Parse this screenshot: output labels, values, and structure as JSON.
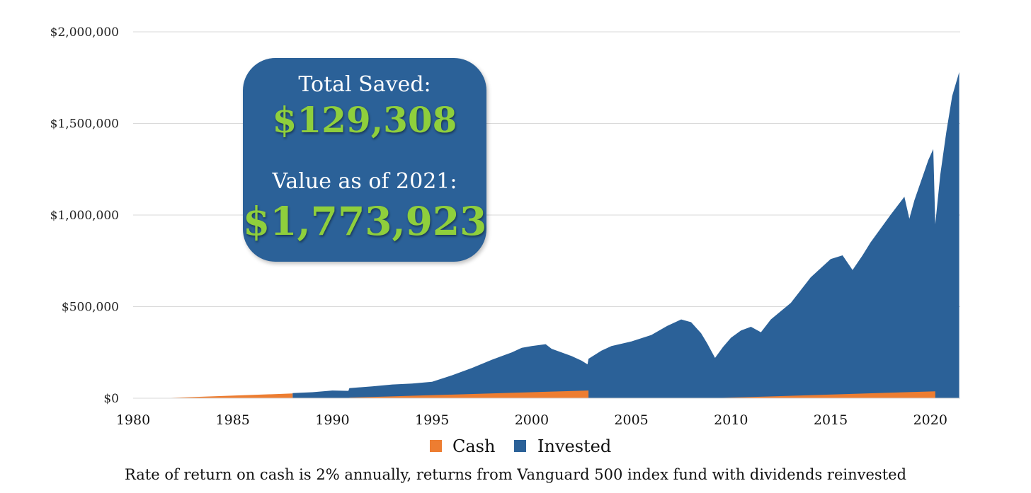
{
  "chart_data": {
    "type": "area",
    "xlim": [
      1980,
      2021.5
    ],
    "ylim": [
      0,
      2000000
    ],
    "y_ticks": [
      {
        "value": 0,
        "label": "$0"
      },
      {
        "value": 500000,
        "label": "$500,000"
      },
      {
        "value": 1000000,
        "label": "$1,000,000"
      },
      {
        "value": 1500000,
        "label": "$1,500,000"
      },
      {
        "value": 2000000,
        "label": "$2,000,000"
      }
    ],
    "x_ticks": [
      {
        "value": 1980,
        "label": "1980"
      },
      {
        "value": 1985,
        "label": "1985"
      },
      {
        "value": 1990,
        "label": "1990"
      },
      {
        "value": 1995,
        "label": "1995"
      },
      {
        "value": 2000,
        "label": "2000"
      },
      {
        "value": 2005,
        "label": "2005"
      },
      {
        "value": 2010,
        "label": "2010"
      },
      {
        "value": 2015,
        "label": "2015"
      },
      {
        "value": 2020,
        "label": "2020"
      }
    ],
    "grid": true,
    "legend_position": "bottom-center",
    "series": [
      {
        "name": "Invested",
        "color": "#2b6198",
        "points": [
          [
            1988.0,
            0
          ],
          [
            1988.0,
            28000
          ],
          [
            1989.0,
            33000
          ],
          [
            1990.0,
            42000
          ],
          [
            1990.8,
            40000
          ],
          [
            1990.85,
            55000
          ],
          [
            1992.0,
            65000
          ],
          [
            1993.0,
            75000
          ],
          [
            1994.0,
            80000
          ],
          [
            1995.0,
            90000
          ],
          [
            1996.0,
            125000
          ],
          [
            1997.0,
            165000
          ],
          [
            1998.0,
            210000
          ],
          [
            1998.5,
            230000
          ],
          [
            1999.0,
            250000
          ],
          [
            1999.5,
            275000
          ],
          [
            2000.0,
            285000
          ],
          [
            2000.7,
            295000
          ],
          [
            2001.0,
            270000
          ],
          [
            2001.5,
            250000
          ],
          [
            2002.0,
            230000
          ],
          [
            2002.5,
            205000
          ],
          [
            2002.8,
            185000
          ],
          [
            2002.85,
            215000
          ],
          [
            2003.5,
            260000
          ],
          [
            2004.0,
            285000
          ],
          [
            2005.0,
            310000
          ],
          [
            2006.0,
            345000
          ],
          [
            2006.8,
            395000
          ],
          [
            2007.5,
            430000
          ],
          [
            2008.0,
            415000
          ],
          [
            2008.5,
            355000
          ],
          [
            2008.8,
            300000
          ],
          [
            2009.2,
            220000
          ],
          [
            2009.6,
            280000
          ],
          [
            2010.0,
            330000
          ],
          [
            2010.5,
            370000
          ],
          [
            2011.0,
            390000
          ],
          [
            2011.5,
            360000
          ],
          [
            2012.0,
            430000
          ],
          [
            2013.0,
            520000
          ],
          [
            2014.0,
            660000
          ],
          [
            2015.0,
            760000
          ],
          [
            2015.6,
            780000
          ],
          [
            2016.1,
            700000
          ],
          [
            2016.6,
            780000
          ],
          [
            2017.0,
            850000
          ],
          [
            2018.0,
            1000000
          ],
          [
            2018.7,
            1100000
          ],
          [
            2018.95,
            980000
          ],
          [
            2019.2,
            1080000
          ],
          [
            2019.9,
            1300000
          ],
          [
            2020.15,
            1360000
          ],
          [
            2020.25,
            950000
          ],
          [
            2020.5,
            1220000
          ],
          [
            2020.8,
            1450000
          ],
          [
            2021.1,
            1650000
          ],
          [
            2021.45,
            1780000
          ],
          [
            2021.45,
            0
          ]
        ]
      },
      {
        "name": "Cash",
        "color": "#ed7d31",
        "points": [
          [
            1981.4,
            0
          ],
          [
            1988.0,
            26000
          ],
          [
            1988.0,
            0
          ],
          [
            1990.85,
            0
          ],
          [
            1990.85,
            3000
          ],
          [
            2002.85,
            42000
          ],
          [
            2002.85,
            0
          ],
          [
            2009.0,
            0
          ],
          [
            2009.0,
            18000
          ],
          [
            2009.0,
            0
          ],
          [
            2009.05,
            0
          ],
          [
            2020.25,
            38000
          ],
          [
            2020.25,
            0
          ]
        ]
      }
    ],
    "annotations": {
      "total_saved_label": "Total Saved:",
      "total_saved_value": "$129,308",
      "value_label": "Value as of 2021:",
      "value_value": "$1,773,923"
    },
    "footnote": "Rate of return on cash is 2% annually, returns from Vanguard 500 index fund with dividends reinvested"
  }
}
